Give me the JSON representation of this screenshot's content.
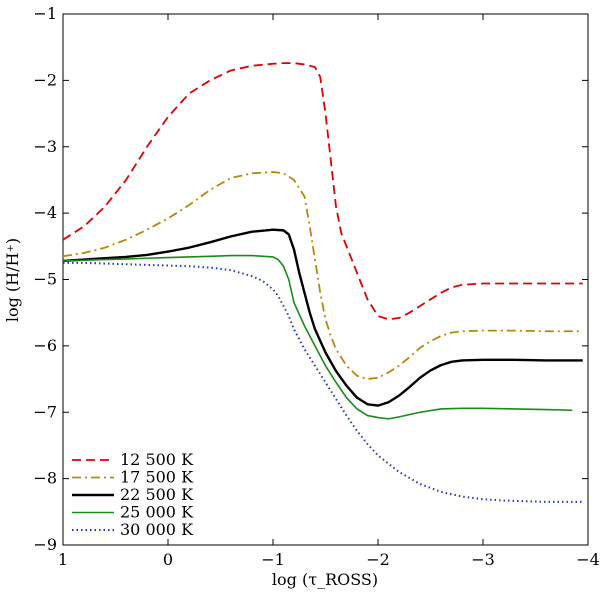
{
  "chart_data": {
    "type": "line",
    "title": "",
    "xlabel": "log (τ_ROSS)",
    "ylabel": "log (H/H⁺)",
    "xlim": [
      1,
      -4
    ],
    "ylim": [
      -9,
      -1
    ],
    "x_reversed": true,
    "xticks": [
      1,
      0,
      -1,
      -2,
      -3,
      -4
    ],
    "xtick_labels": [
      "1",
      "0",
      "−1",
      "−2",
      "−3",
      "−4"
    ],
    "yticks": [
      -1,
      -2,
      -3,
      -4,
      -5,
      -6,
      -7,
      -8,
      -9
    ],
    "ytick_labels": [
      "−1",
      "−2",
      "−3",
      "−4",
      "−5",
      "−6",
      "−7",
      "−8",
      "−9"
    ],
    "grid": false,
    "legend_position": "bottom-left",
    "series": [
      {
        "name": "12 500 K",
        "color": "#e00000",
        "style": "dashed",
        "x": [
          1.0,
          0.8,
          0.6,
          0.4,
          0.2,
          0.0,
          -0.2,
          -0.4,
          -0.6,
          -0.8,
          -1.0,
          -1.1,
          -1.2,
          -1.3,
          -1.4,
          -1.45,
          -1.5,
          -1.55,
          -1.6,
          -1.65,
          -1.7,
          -1.8,
          -1.9,
          -2.0,
          -2.1,
          -2.2,
          -2.3,
          -2.4,
          -2.5,
          -2.6,
          -2.7,
          -2.8,
          -3.0,
          -3.2,
          -3.5,
          -3.8,
          -3.95
        ],
        "y": [
          -4.4,
          -4.2,
          -3.9,
          -3.5,
          -3.0,
          -2.55,
          -2.2,
          -2.0,
          -1.85,
          -1.78,
          -1.75,
          -1.74,
          -1.74,
          -1.76,
          -1.8,
          -1.95,
          -2.5,
          -3.2,
          -3.9,
          -4.3,
          -4.5,
          -4.9,
          -5.3,
          -5.55,
          -5.6,
          -5.58,
          -5.5,
          -5.4,
          -5.3,
          -5.2,
          -5.12,
          -5.08,
          -5.06,
          -5.06,
          -5.06,
          -5.06,
          -5.06
        ]
      },
      {
        "name": "17 500 K",
        "color": "#b8860b",
        "style": "dashdot",
        "x": [
          1.0,
          0.8,
          0.6,
          0.4,
          0.2,
          0.0,
          -0.2,
          -0.4,
          -0.6,
          -0.8,
          -1.0,
          -1.1,
          -1.2,
          -1.3,
          -1.35,
          -1.4,
          -1.45,
          -1.5,
          -1.55,
          -1.6,
          -1.7,
          -1.8,
          -1.9,
          -2.0,
          -2.1,
          -2.2,
          -2.3,
          -2.4,
          -2.5,
          -2.6,
          -2.7,
          -2.8,
          -3.0,
          -3.3,
          -3.6,
          -3.95
        ],
        "y": [
          -4.65,
          -4.6,
          -4.52,
          -4.4,
          -4.25,
          -4.08,
          -3.88,
          -3.65,
          -3.47,
          -3.4,
          -3.38,
          -3.4,
          -3.5,
          -3.75,
          -4.2,
          -4.7,
          -5.2,
          -5.6,
          -5.85,
          -6.05,
          -6.3,
          -6.45,
          -6.5,
          -6.48,
          -6.4,
          -6.3,
          -6.17,
          -6.03,
          -5.93,
          -5.85,
          -5.8,
          -5.78,
          -5.77,
          -5.77,
          -5.78,
          -5.78
        ]
      },
      {
        "name": "22 500 K",
        "color": "#000000",
        "style": "solid",
        "x": [
          1.0,
          0.8,
          0.6,
          0.4,
          0.2,
          0.0,
          -0.2,
          -0.4,
          -0.6,
          -0.8,
          -1.0,
          -1.1,
          -1.15,
          -1.2,
          -1.25,
          -1.3,
          -1.35,
          -1.4,
          -1.5,
          -1.6,
          -1.7,
          -1.8,
          -1.9,
          -2.0,
          -2.1,
          -2.2,
          -2.3,
          -2.4,
          -2.5,
          -2.6,
          -2.7,
          -2.8,
          -3.0,
          -3.3,
          -3.6,
          -3.95
        ],
        "y": [
          -4.72,
          -4.7,
          -4.68,
          -4.66,
          -4.63,
          -4.58,
          -4.52,
          -4.44,
          -4.35,
          -4.28,
          -4.25,
          -4.26,
          -4.32,
          -4.55,
          -4.9,
          -5.2,
          -5.5,
          -5.75,
          -6.1,
          -6.38,
          -6.6,
          -6.78,
          -6.88,
          -6.9,
          -6.85,
          -6.75,
          -6.62,
          -6.48,
          -6.37,
          -6.29,
          -6.24,
          -6.22,
          -6.21,
          -6.21,
          -6.22,
          -6.22
        ]
      },
      {
        "name": "25 000 K",
        "color": "#1a8a1a",
        "style": "solid",
        "x": [
          1.0,
          0.8,
          0.6,
          0.4,
          0.2,
          0.0,
          -0.2,
          -0.4,
          -0.6,
          -0.8,
          -1.0,
          -1.05,
          -1.1,
          -1.15,
          -1.2,
          -1.3,
          -1.4,
          -1.5,
          -1.6,
          -1.7,
          -1.8,
          -1.9,
          -2.0,
          -2.1,
          -2.2,
          -2.4,
          -2.6,
          -2.8,
          -3.0,
          -3.3,
          -3.6,
          -3.85
        ],
        "y": [
          -4.72,
          -4.71,
          -4.7,
          -4.69,
          -4.68,
          -4.67,
          -4.66,
          -4.65,
          -4.64,
          -4.64,
          -4.66,
          -4.7,
          -4.8,
          -5.0,
          -5.35,
          -5.7,
          -6.0,
          -6.3,
          -6.55,
          -6.78,
          -6.95,
          -7.05,
          -7.08,
          -7.1,
          -7.07,
          -7.0,
          -6.95,
          -6.94,
          -6.94,
          -6.95,
          -6.96,
          -6.97
        ]
      },
      {
        "name": "30 000 K",
        "color": "#2233cc",
        "style": "dotted",
        "x": [
          1.0,
          0.8,
          0.6,
          0.4,
          0.2,
          0.0,
          -0.2,
          -0.4,
          -0.6,
          -0.8,
          -0.9,
          -1.0,
          -1.05,
          -1.1,
          -1.15,
          -1.2,
          -1.25,
          -1.3,
          -1.4,
          -1.5,
          -1.6,
          -1.7,
          -1.8,
          -1.9,
          -2.0,
          -2.2,
          -2.4,
          -2.6,
          -2.8,
          -3.0,
          -3.2,
          -3.4,
          -3.6,
          -3.8,
          -3.95
        ],
        "y": [
          -4.75,
          -4.75,
          -4.76,
          -4.77,
          -4.78,
          -4.79,
          -4.8,
          -4.82,
          -4.86,
          -4.95,
          -5.02,
          -5.15,
          -5.25,
          -5.4,
          -5.55,
          -5.75,
          -5.9,
          -6.05,
          -6.3,
          -6.55,
          -6.8,
          -7.05,
          -7.28,
          -7.48,
          -7.65,
          -7.9,
          -8.08,
          -8.2,
          -8.27,
          -8.31,
          -8.33,
          -8.34,
          -8.35,
          -8.35,
          -8.35
        ]
      }
    ]
  }
}
